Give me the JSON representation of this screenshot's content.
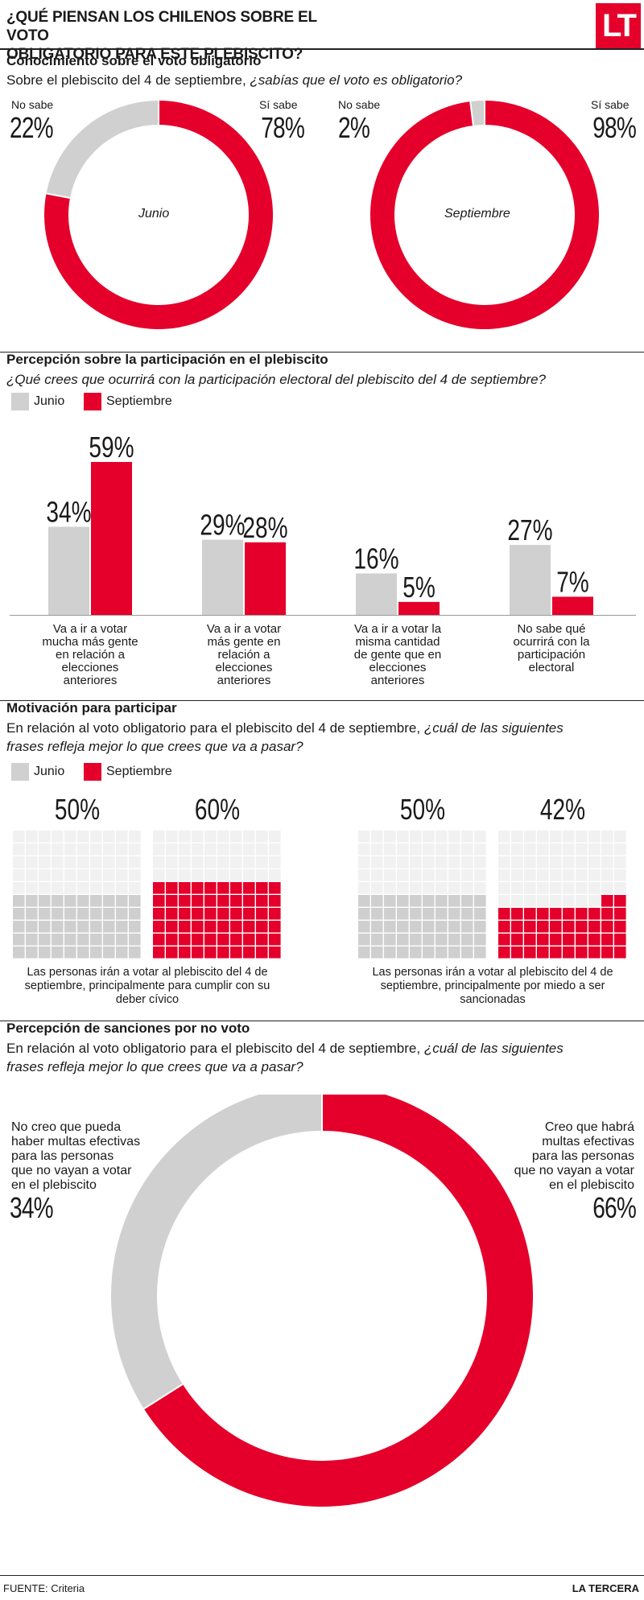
{
  "header": {
    "title_line1": "¿QUÉ PIENSAN LOS CHILENOS SOBRE EL VOTO",
    "title_line2": "OBLIGATORIO PARA ESTE PLEBISCITO?",
    "logo": "LT"
  },
  "colors": {
    "gray": "#d0d0d0",
    "red": "#e4002b",
    "grid_gray": "#cfcfcf"
  },
  "legend": {
    "junio": "Junio",
    "septiembre": "Septiembre"
  },
  "section1": {
    "title": "Conocimiento sobre el voto obligatorio",
    "subtitle_plain": "Sobre el plebiscito del 4 de septiembre, ",
    "subtitle_em": "¿sabías que el voto es obligatorio?"
  },
  "section2": {
    "title": "Percepción sobre la participación en el plebiscito",
    "subtitle_em": "¿Qué crees que ocurrirá con la participación electoral del plebiscito del 4 de septiembre?"
  },
  "section3": {
    "title": "Motivación para participar",
    "subtitle_plain": "En relación al voto obligatorio para el plebiscito del 4 de septiembre, ",
    "subtitle_em_1": "¿cuál de las siguientes",
    "subtitle_em_2": "frases refleja mejor lo que crees que va a pasar?"
  },
  "section4": {
    "title": "Percepción de sanciones por no voto",
    "subtitle_plain": "En relación al voto obligatorio para el plebiscito del 4 de septiembre, ",
    "subtitle_em_1": "¿cuál de las siguientes",
    "subtitle_em_2": "frases refleja mejor lo que crees que va a pasar?"
  },
  "footer": {
    "source": "FUENTE: Criteria",
    "brand": "LA TERCERA"
  },
  "chart_data": [
    {
      "type": "pie",
      "title": "Junio",
      "labels": [
        "No sabe",
        "Sí sabe"
      ],
      "values": [
        22,
        78
      ],
      "display": [
        "22%",
        "78%"
      ]
    },
    {
      "type": "pie",
      "title": "Septiembre",
      "labels": [
        "No sabe",
        "Sí sabe"
      ],
      "values": [
        2,
        98
      ],
      "display": [
        "2%",
        "98%"
      ]
    },
    {
      "type": "bar",
      "categories": [
        "Va a ir a votar mucha más gente en relación a elecciones anteriores",
        "Va a ir a votar más gente en relación a elecciones anteriores",
        "Va a ir a votar la misma cantidad de gente que en elecciones anteriores",
        "No sabe qué ocurrirá con la participación electoral"
      ],
      "category_lines": [
        [
          "Va a ir a votar",
          "mucha más gente",
          "en relación a",
          "elecciones",
          "anteriores"
        ],
        [
          "Va a ir a votar",
          "más gente en",
          "relación a",
          "elecciones",
          "anteriores"
        ],
        [
          "Va a ir a votar la",
          "misma cantidad",
          "de gente que en",
          "elecciones",
          "anteriores"
        ],
        [
          "No sabe qué",
          "ocurrirá con la",
          "participación",
          "electoral"
        ]
      ],
      "series": [
        {
          "name": "Junio",
          "values": [
            34,
            29,
            16,
            27
          ],
          "display": [
            "34%",
            "29%",
            "16%",
            "27%"
          ]
        },
        {
          "name": "Septiembre",
          "values": [
            59,
            28,
            5,
            7
          ],
          "display": [
            "59%",
            "28%",
            "5%",
            "7%"
          ]
        }
      ],
      "ylim": [
        0,
        60
      ]
    },
    {
      "type": "waffle",
      "grid": [
        10,
        10
      ],
      "groups": [
        {
          "label_lines": [
            "Las personas irán a votar al plebiscito del 4 de",
            "septiembre, principalmente para cumplir con su",
            "deber cívico"
          ],
          "series": [
            {
              "name": "Junio",
              "value": 50,
              "display": "50%"
            },
            {
              "name": "Septiembre",
              "value": 60,
              "display": "60%"
            }
          ]
        },
        {
          "label_lines": [
            "Las personas irán a votar al plebiscito del 4 de",
            "septiembre, principalmente por miedo a ser",
            "sancionadas"
          ],
          "series": [
            {
              "name": "Junio",
              "value": 50,
              "display": "50%"
            },
            {
              "name": "Septiembre",
              "value": 42,
              "display": "42%"
            }
          ]
        }
      ]
    },
    {
      "type": "pie",
      "title": "Percepción de sanciones por no voto",
      "labels": [
        "No creo que pueda haber multas efectivas para las personas que no vayan a votar en el plebiscito",
        "Creo que habrá multas efectivas para las personas que no vayan a votar en el plebiscito"
      ],
      "label_lines": [
        [
          "No creo que pueda",
          "haber multas efectivas",
          "para las personas",
          "que no vayan a votar",
          "en el plebiscito"
        ],
        [
          "Creo que habrá",
          "multas efectivas",
          "para las personas",
          "que no vayan a votar",
          "en el plebiscito"
        ]
      ],
      "values": [
        34,
        66
      ],
      "display": [
        "34%",
        "66%"
      ]
    }
  ]
}
